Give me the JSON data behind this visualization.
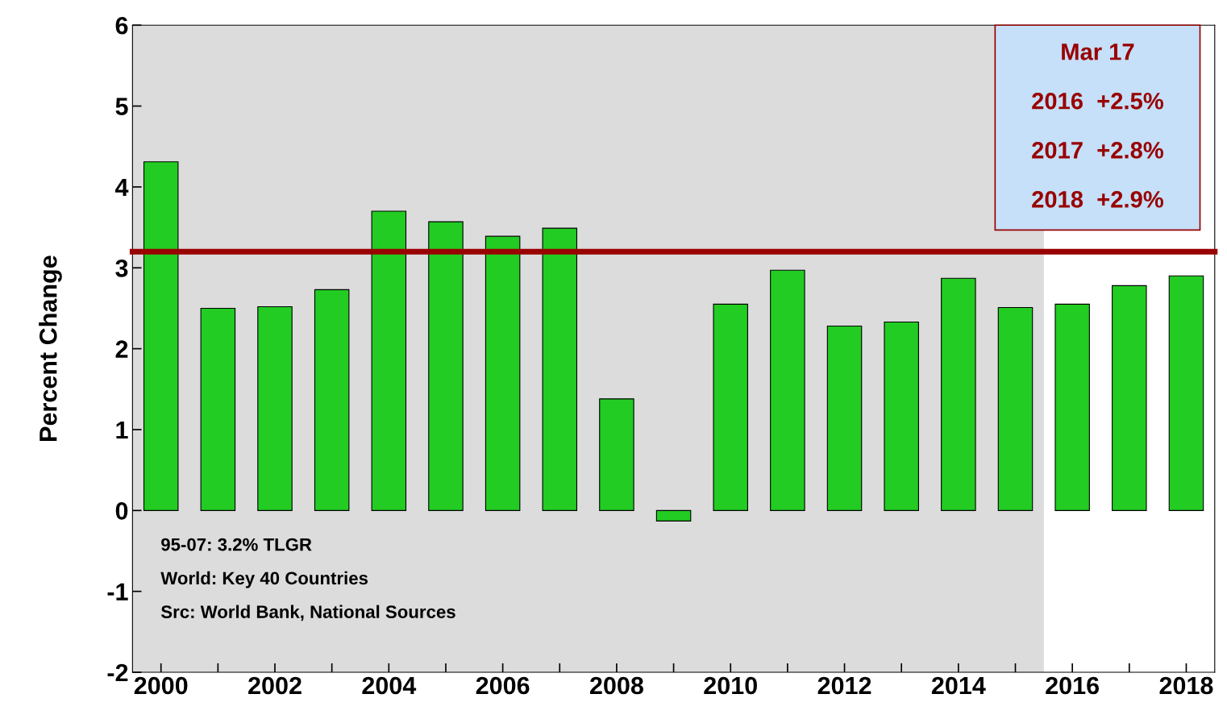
{
  "chart_data": {
    "type": "bar",
    "ylabel": "Percent Change",
    "x": [
      2000,
      2001,
      2002,
      2003,
      2004,
      2005,
      2006,
      2007,
      2008,
      2009,
      2010,
      2011,
      2012,
      2013,
      2014,
      2015,
      2016,
      2017,
      2018
    ],
    "values": [
      4.31,
      2.5,
      2.52,
      2.73,
      3.7,
      3.57,
      3.39,
      3.49,
      1.38,
      -0.13,
      2.55,
      2.97,
      2.28,
      2.33,
      2.87,
      2.51,
      2.55,
      2.78,
      2.9
    ],
    "color": "#22cc22",
    "xlim": [
      1999.5,
      2018.5
    ],
    "xticks": [
      2000,
      {
        "value": 2001,
        "label": null
      },
      2002,
      {
        "value": 2003,
        "label": null
      },
      2004,
      {
        "value": 2005,
        "label": null
      },
      2006,
      {
        "value": 2007,
        "label": null
      },
      2008,
      {
        "value": 2009,
        "label": null
      },
      2010,
      {
        "value": 2011,
        "label": null
      },
      2012,
      {
        "value": 2013,
        "label": null
      },
      2014,
      {
        "value": 2015,
        "label": null
      },
      2016,
      {
        "value": 2017,
        "label": null
      },
      2018
    ],
    "ylim": [
      -2,
      6
    ],
    "yticks": [
      -2,
      -1,
      0,
      1,
      2,
      3,
      4,
      5,
      6
    ],
    "ref_lines": [
      {
        "axis": "y",
        "value": 3.2,
        "label": null,
        "color": "#990000"
      }
    ],
    "bands": [
      {
        "axis": "x",
        "from": 1999.5,
        "to": 2015.5,
        "label": null,
        "color": "#dcdcdc"
      }
    ],
    "annotations": [
      "Mar 17",
      "2016  +2.5%",
      "2017  +2.8%",
      "2018  +2.9%",
      "95-07: 3.2% TLGR",
      "World: Key 40 Countries",
      "Src: World Bank, National Sources"
    ],
    "grid": false,
    "legend": false
  }
}
